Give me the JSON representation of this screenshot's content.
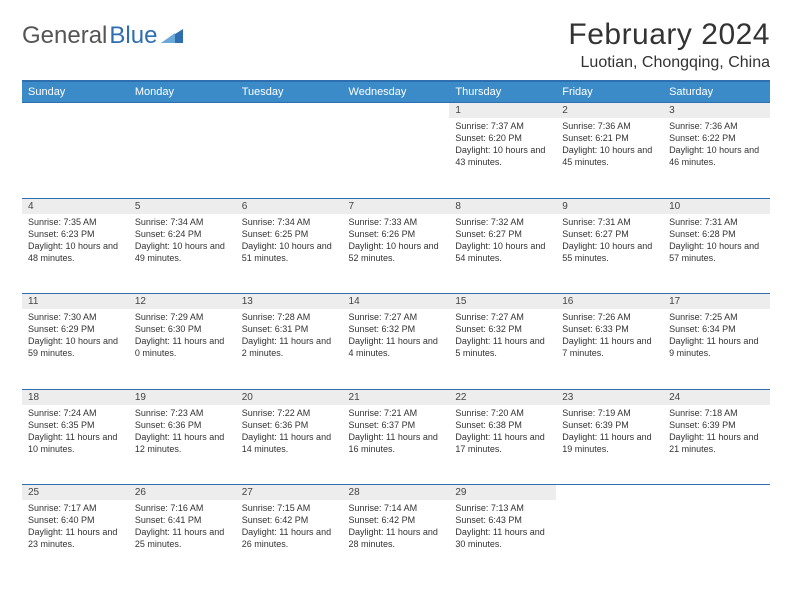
{
  "brand": {
    "part1": "General",
    "part2": "Blue"
  },
  "title": "February 2024",
  "location": "Luotian, Chongqing, China",
  "colors": {
    "header_bg": "#3b8bc8",
    "header_border": "#2f6fb0",
    "daynum_bg": "#ededed",
    "text": "#333333",
    "brand_gray": "#555555",
    "brand_blue": "#2f6fb0"
  },
  "fonts": {
    "title_size": 30,
    "location_size": 16,
    "th_size": 11,
    "cell_size": 9
  },
  "weekdays": [
    "Sunday",
    "Monday",
    "Tuesday",
    "Wednesday",
    "Thursday",
    "Friday",
    "Saturday"
  ],
  "weeks": [
    [
      null,
      null,
      null,
      null,
      {
        "n": "1",
        "sr": "7:37 AM",
        "ss": "6:20 PM",
        "dl": "10 hours and 43 minutes."
      },
      {
        "n": "2",
        "sr": "7:36 AM",
        "ss": "6:21 PM",
        "dl": "10 hours and 45 minutes."
      },
      {
        "n": "3",
        "sr": "7:36 AM",
        "ss": "6:22 PM",
        "dl": "10 hours and 46 minutes."
      }
    ],
    [
      {
        "n": "4",
        "sr": "7:35 AM",
        "ss": "6:23 PM",
        "dl": "10 hours and 48 minutes."
      },
      {
        "n": "5",
        "sr": "7:34 AM",
        "ss": "6:24 PM",
        "dl": "10 hours and 49 minutes."
      },
      {
        "n": "6",
        "sr": "7:34 AM",
        "ss": "6:25 PM",
        "dl": "10 hours and 51 minutes."
      },
      {
        "n": "7",
        "sr": "7:33 AM",
        "ss": "6:26 PM",
        "dl": "10 hours and 52 minutes."
      },
      {
        "n": "8",
        "sr": "7:32 AM",
        "ss": "6:27 PM",
        "dl": "10 hours and 54 minutes."
      },
      {
        "n": "9",
        "sr": "7:31 AM",
        "ss": "6:27 PM",
        "dl": "10 hours and 55 minutes."
      },
      {
        "n": "10",
        "sr": "7:31 AM",
        "ss": "6:28 PM",
        "dl": "10 hours and 57 minutes."
      }
    ],
    [
      {
        "n": "11",
        "sr": "7:30 AM",
        "ss": "6:29 PM",
        "dl": "10 hours and 59 minutes."
      },
      {
        "n": "12",
        "sr": "7:29 AM",
        "ss": "6:30 PM",
        "dl": "11 hours and 0 minutes."
      },
      {
        "n": "13",
        "sr": "7:28 AM",
        "ss": "6:31 PM",
        "dl": "11 hours and 2 minutes."
      },
      {
        "n": "14",
        "sr": "7:27 AM",
        "ss": "6:32 PM",
        "dl": "11 hours and 4 minutes."
      },
      {
        "n": "15",
        "sr": "7:27 AM",
        "ss": "6:32 PM",
        "dl": "11 hours and 5 minutes."
      },
      {
        "n": "16",
        "sr": "7:26 AM",
        "ss": "6:33 PM",
        "dl": "11 hours and 7 minutes."
      },
      {
        "n": "17",
        "sr": "7:25 AM",
        "ss": "6:34 PM",
        "dl": "11 hours and 9 minutes."
      }
    ],
    [
      {
        "n": "18",
        "sr": "7:24 AM",
        "ss": "6:35 PM",
        "dl": "11 hours and 10 minutes."
      },
      {
        "n": "19",
        "sr": "7:23 AM",
        "ss": "6:36 PM",
        "dl": "11 hours and 12 minutes."
      },
      {
        "n": "20",
        "sr": "7:22 AM",
        "ss": "6:36 PM",
        "dl": "11 hours and 14 minutes."
      },
      {
        "n": "21",
        "sr": "7:21 AM",
        "ss": "6:37 PM",
        "dl": "11 hours and 16 minutes."
      },
      {
        "n": "22",
        "sr": "7:20 AM",
        "ss": "6:38 PM",
        "dl": "11 hours and 17 minutes."
      },
      {
        "n": "23",
        "sr": "7:19 AM",
        "ss": "6:39 PM",
        "dl": "11 hours and 19 minutes."
      },
      {
        "n": "24",
        "sr": "7:18 AM",
        "ss": "6:39 PM",
        "dl": "11 hours and 21 minutes."
      }
    ],
    [
      {
        "n": "25",
        "sr": "7:17 AM",
        "ss": "6:40 PM",
        "dl": "11 hours and 23 minutes."
      },
      {
        "n": "26",
        "sr": "7:16 AM",
        "ss": "6:41 PM",
        "dl": "11 hours and 25 minutes."
      },
      {
        "n": "27",
        "sr": "7:15 AM",
        "ss": "6:42 PM",
        "dl": "11 hours and 26 minutes."
      },
      {
        "n": "28",
        "sr": "7:14 AM",
        "ss": "6:42 PM",
        "dl": "11 hours and 28 minutes."
      },
      {
        "n": "29",
        "sr": "7:13 AM",
        "ss": "6:43 PM",
        "dl": "11 hours and 30 minutes."
      },
      null,
      null
    ]
  ],
  "labels": {
    "sunrise": "Sunrise: ",
    "sunset": "Sunset: ",
    "daylight": "Daylight: "
  }
}
